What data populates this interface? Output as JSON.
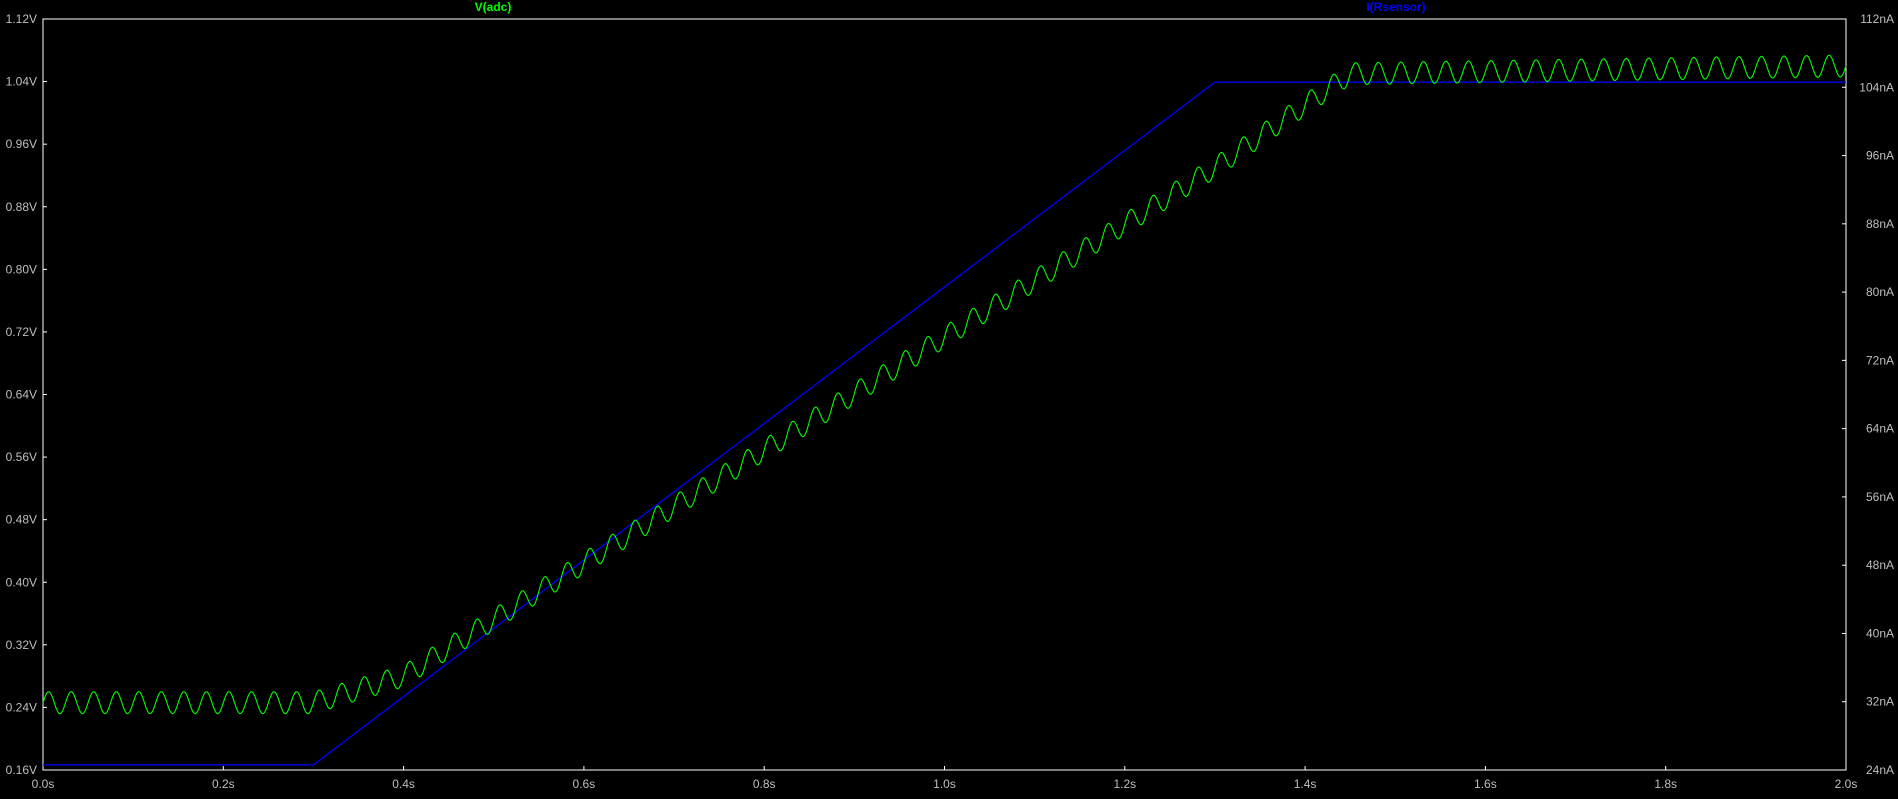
{
  "chart_data": {
    "type": "line",
    "x": {
      "min": 0,
      "max": 2.0,
      "ticks": [
        0,
        0.2,
        0.4,
        0.6,
        0.8,
        1.0,
        1.2,
        1.4,
        1.6,
        1.8,
        2.0
      ],
      "tick_labels": [
        "0.0s",
        "0.2s",
        "0.4s",
        "0.6s",
        "0.8s",
        "1.0s",
        "1.2s",
        "1.4s",
        "1.6s",
        "1.8s",
        "2.0s"
      ]
    },
    "y_left": {
      "min": 0.16,
      "max": 1.12,
      "ticks": [
        0.16,
        0.24,
        0.32,
        0.4,
        0.48,
        0.56,
        0.64,
        0.72,
        0.8,
        0.88,
        0.96,
        1.04,
        1.12
      ],
      "tick_labels": [
        "0.16V",
        "0.24V",
        "0.32V",
        "0.40V",
        "0.48V",
        "0.56V",
        "0.64V",
        "0.72V",
        "0.80V",
        "0.88V",
        "0.96V",
        "1.04V",
        "1.12V"
      ]
    },
    "y_right": {
      "min": 24,
      "max": 112,
      "ticks": [
        24,
        32,
        40,
        48,
        56,
        64,
        72,
        80,
        88,
        96,
        104,
        112
      ],
      "tick_labels": [
        "24nA",
        "32nA",
        "40nA",
        "48nA",
        "56nA",
        "64nA",
        "72nA",
        "80nA",
        "88nA",
        "96nA",
        "104nA",
        "112nA"
      ]
    },
    "series": [
      {
        "name": "V(adc)",
        "axis": "left",
        "color": "#00ff00",
        "baseline": {
          "x": [
            0,
            0.3,
            0.4,
            1.3,
            1.45,
            2.0
          ],
          "y": [
            0.246,
            0.246,
            0.28,
            0.93,
            1.05,
            1.06
          ]
        },
        "ripple": {
          "frequency_hz": 40,
          "amplitude_v": 0.014
        }
      },
      {
        "name": "I(Rsensor)",
        "axis": "right",
        "color": "#0000ff",
        "x": [
          0,
          0.3,
          1.3,
          2.0
        ],
        "y": [
          24.6,
          24.6,
          104.6,
          104.6
        ]
      }
    ],
    "title": "",
    "xlabel": "",
    "ylabel": "",
    "grid": false,
    "colors": {
      "background": "#000000",
      "axis": "#ffffff",
      "tick_text": "#bfbfbf",
      "v_adc": "#00ff00",
      "i_rsensor": "#0000ff"
    }
  }
}
